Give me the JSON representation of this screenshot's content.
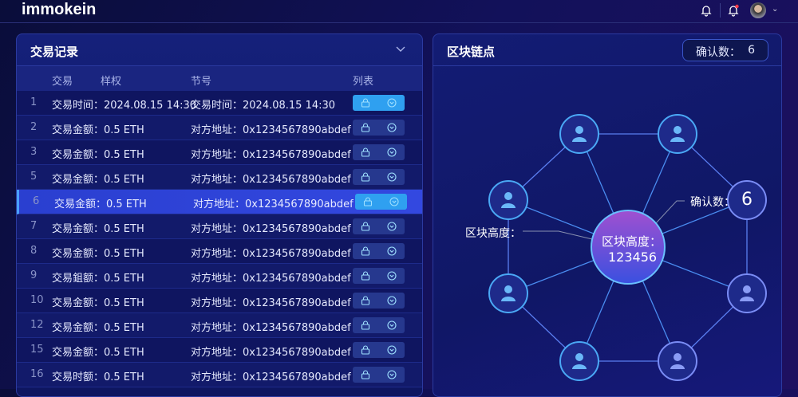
{
  "app": {
    "title": "immokein"
  },
  "header": {
    "icons": [
      "bell-icon",
      "bell-notification-icon",
      "avatar",
      "chevron-down-icon"
    ]
  },
  "transactions": {
    "title": "交易记录",
    "columns": [
      "交易",
      "样权",
      "节号",
      "列表"
    ],
    "rows": [
      {
        "num": "1",
        "c1": "交易时间：2024.08.15 14:30",
        "c2": "交易时间：2024.08.15 14:30",
        "selected": false,
        "first": true
      },
      {
        "num": "2",
        "c1": "交易金额：0.5 ETH",
        "c2": "对方地址：0x1234567890abdef"
      },
      {
        "num": "3",
        "c1": "交易金额：0.5 ETH",
        "c2": "对方地址：0x1234567890abdef"
      },
      {
        "num": "5",
        "c1": "交易金额：0.5 ETH",
        "c2": "对方地址：0x1234567890abdef"
      },
      {
        "num": "6",
        "c1": "交易金额：0.5 ETH",
        "c2": "对方地址：0x1234567890abdef",
        "selected": true
      },
      {
        "num": "7",
        "c1": "交易金额：0.5 ETH",
        "c2": "对方地址：0x1234567890abdef"
      },
      {
        "num": "8",
        "c1": "交易金额：0.5 ETH",
        "c2": "对方地址：0x1234567890abdef"
      },
      {
        "num": "9",
        "c1": "交易鉏额：0.5 ETH",
        "c2": "对方地址：0x1234567890abdef"
      },
      {
        "num": "10",
        "c1": "交易金额：0.5 ETH",
        "c2": "对方地址：0x1234567890abdef"
      },
      {
        "num": "12",
        "c1": "交易金额：0.5 ETH",
        "c2": "对方地址：0x1234567890abdef"
      },
      {
        "num": "15",
        "c1": "交易金额：0.5 ETH",
        "c2": "对方地址：0x1234567890abdef"
      },
      {
        "num": "16",
        "c1": "交易时额：0.5 ETH",
        "c2": "对方地址：0x1234567890abdef"
      }
    ]
  },
  "blockchain": {
    "title": "区块链点",
    "confirm_label": "确认数：",
    "confirm_value": "6",
    "center_label": "区块高度：",
    "center_value": "123456",
    "side_height_label": "区块高度：",
    "side_confirm_label": "确认数：",
    "colors": {
      "center_top": "#a050d0",
      "center_bottom": "#3a50e0",
      "edge": "#4a8cf0",
      "node": "#1e2a8a"
    }
  }
}
